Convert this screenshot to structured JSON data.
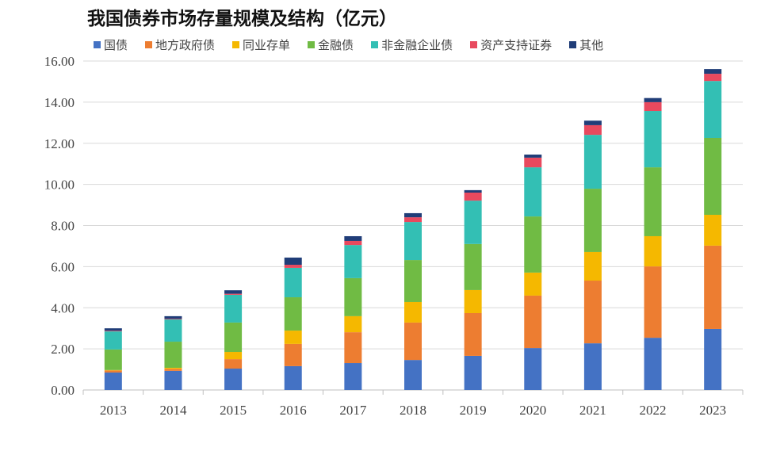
{
  "chart_data": {
    "type": "bar",
    "stacked": true,
    "title": "我国债券市场存量规模及结构（亿元）",
    "xlabel": "",
    "ylabel": "",
    "ylim": [
      0,
      16
    ],
    "yticks": [
      "0.00",
      "2.00",
      "4.00",
      "6.00",
      "8.00",
      "10.00",
      "12.00",
      "14.00",
      "16.00"
    ],
    "grid": true,
    "legend_position": "top",
    "categories": [
      "2013",
      "2014",
      "2015",
      "2016",
      "2017",
      "2018",
      "2019",
      "2020",
      "2021",
      "2022",
      "2023"
    ],
    "series": [
      {
        "name": "国债",
        "color": "#4472C4",
        "values": [
          0.85,
          0.93,
          1.04,
          1.16,
          1.31,
          1.46,
          1.66,
          2.04,
          2.27,
          2.54,
          2.97
        ]
      },
      {
        "name": "地方政府债",
        "color": "#ED7D31",
        "values": [
          0.1,
          0.1,
          0.46,
          1.08,
          1.5,
          1.82,
          2.08,
          2.55,
          3.05,
          3.47,
          4.05
        ]
      },
      {
        "name": "同业存单",
        "color": "#F5B800",
        "values": [
          0.02,
          0.05,
          0.35,
          0.65,
          0.78,
          1.0,
          1.12,
          1.12,
          1.39,
          1.47,
          1.5
        ]
      },
      {
        "name": "金融债",
        "color": "#70BB44",
        "values": [
          1.0,
          1.27,
          1.43,
          1.62,
          1.85,
          2.04,
          2.24,
          2.73,
          3.08,
          3.35,
          3.74
        ]
      },
      {
        "name": "非金融企业债",
        "color": "#33BFB4",
        "values": [
          0.88,
          1.08,
          1.35,
          1.43,
          1.61,
          1.85,
          2.11,
          2.39,
          2.62,
          2.74,
          2.77
        ]
      },
      {
        "name": "资产支持证券",
        "color": "#E8495E",
        "values": [
          0.03,
          0.03,
          0.05,
          0.15,
          0.2,
          0.23,
          0.39,
          0.47,
          0.47,
          0.43,
          0.35
        ]
      },
      {
        "name": "其他",
        "color": "#203D78",
        "values": [
          0.12,
          0.13,
          0.17,
          0.35,
          0.23,
          0.2,
          0.12,
          0.15,
          0.22,
          0.2,
          0.23
        ]
      }
    ]
  }
}
